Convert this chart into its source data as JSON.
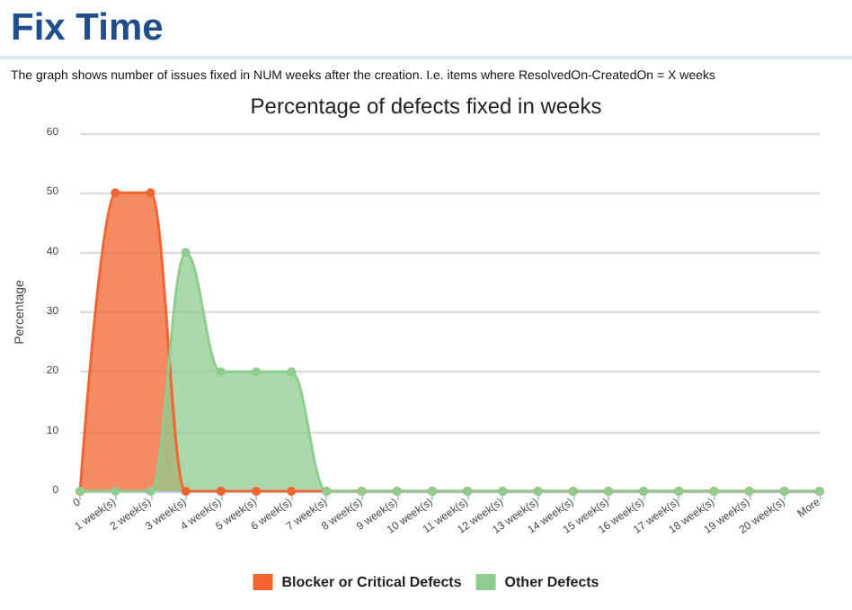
{
  "chart_data": {
    "type": "area",
    "title": "Fix Time",
    "subtitle": "The graph shows number of issues fixed in NUM weeks after the creation. I.e. items where ResolvedOn-CreatedOn = X weeks",
    "annotations": [
      "Percentage of defects fixed in weeks"
    ],
    "ylabel": "Percentage",
    "categories": [
      "0",
      "1 week(s)",
      "2 week(s)",
      "3 week(s)",
      "4 week(s)",
      "5 week(s)",
      "6 week(s)",
      "7 week(s)",
      "8 week(s)",
      "9 week(s)",
      "10 week(s)",
      "11 week(s)",
      "12 week(s)",
      "13 week(s)",
      "14 week(s)",
      "15 week(s)",
      "16 week(s)",
      "17 week(s)",
      "18 week(s)",
      "19 week(s)",
      "20 week(s)",
      "More"
    ],
    "series": [
      {
        "name": "Blocker or Critical Defects",
        "color": "#f26430",
        "values": [
          0,
          50,
          50,
          0,
          0,
          0,
          0,
          0,
          0,
          0,
          0,
          0,
          0,
          0,
          0,
          0,
          0,
          0,
          0,
          0,
          0,
          0
        ]
      },
      {
        "name": "Other Defects",
        "color": "#8fcc8f",
        "values": [
          0,
          0,
          0,
          40,
          20,
          20,
          20,
          0,
          0,
          0,
          0,
          0,
          0,
          0,
          0,
          0,
          0,
          0,
          0,
          0,
          0,
          0
        ]
      }
    ],
    "ylim": [
      0,
      60
    ],
    "yticks": [
      0,
      10,
      20,
      30,
      40,
      50,
      60
    ],
    "grid": "y",
    "legend": "bottom",
    "marker": "circle"
  }
}
